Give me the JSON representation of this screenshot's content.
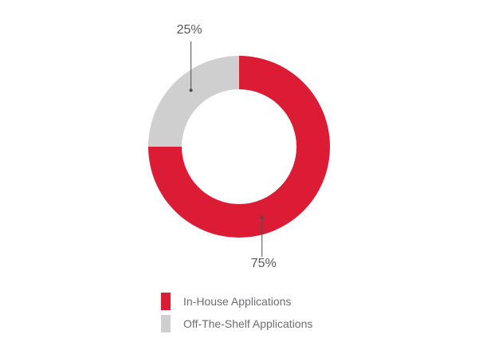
{
  "chart_data": {
    "type": "pie",
    "donut": true,
    "title": "",
    "categories": [
      "In-House Applications",
      "Off-The-Shelf Applications"
    ],
    "values": [
      75,
      25
    ],
    "labels": [
      "75%",
      "25%"
    ],
    "colors": [
      "#dc1c35",
      "#cfcfd0"
    ],
    "legend_position": "bottom-left"
  },
  "legend": {
    "items": [
      {
        "label": "In-House Applications",
        "color": "#dc1c35"
      },
      {
        "label": "Off-The-Shelf Applications",
        "color": "#cfcfd0"
      }
    ]
  }
}
